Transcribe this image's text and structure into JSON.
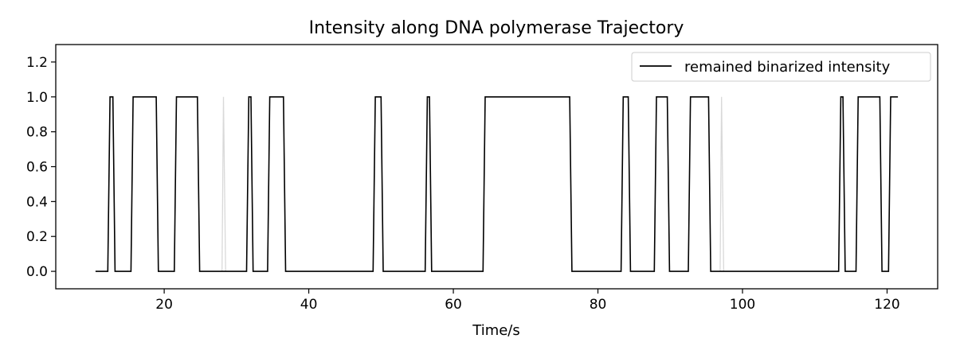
{
  "chart_data": {
    "type": "line",
    "title": "Intensity along DNA polymerase Trajectory",
    "xlabel": "Time/s",
    "ylabel": "",
    "xlim": [
      5,
      127
    ],
    "ylim": [
      -0.1,
      1.3
    ],
    "xticks": [
      20,
      40,
      60,
      80,
      100,
      120
    ],
    "xtick_labels": [
      "20",
      "40",
      "60",
      "80",
      "100",
      "120"
    ],
    "yticks": [
      0.0,
      0.2,
      0.4,
      0.6,
      0.8,
      1.0,
      1.2
    ],
    "ytick_labels": [
      "0.0",
      "0.2",
      "0.4",
      "0.6",
      "0.8",
      "1.0",
      "1.2"
    ],
    "grid": false,
    "legend": {
      "position": "top-right",
      "entries": [
        "remained binarized intensity"
      ]
    },
    "series": [
      {
        "name": "remained binarized intensity",
        "color": "#000000",
        "x": [
          10.5,
          12.2,
          12.5,
          12.9,
          13.2,
          15.4,
          15.7,
          18.9,
          19.2,
          21.4,
          21.7,
          24.6,
          24.9,
          31.4,
          31.7,
          32.0,
          32.3,
          34.3,
          34.6,
          36.5,
          36.8,
          48.9,
          49.2,
          50.0,
          50.3,
          56.1,
          56.4,
          56.7,
          57.0,
          64.1,
          64.4,
          76.1,
          76.4,
          83.2,
          83.5,
          84.2,
          84.5,
          87.8,
          88.1,
          89.6,
          89.9,
          92.5,
          92.8,
          95.3,
          95.6,
          113.3,
          113.6,
          113.9,
          114.2,
          115.7,
          116.0,
          119.0,
          119.3,
          120.2,
          120.5,
          121.5
        ],
        "y": [
          0,
          0,
          1,
          1,
          0,
          0,
          1,
          1,
          0,
          0,
          1,
          1,
          0,
          0,
          1,
          1,
          0,
          0,
          1,
          1,
          0,
          0,
          1,
          1,
          0,
          0,
          1,
          1,
          0,
          0,
          1,
          1,
          0,
          0,
          1,
          1,
          0,
          0,
          1,
          1,
          0,
          0,
          1,
          1,
          0,
          0,
          1,
          1,
          0,
          0,
          1,
          1,
          0,
          0,
          1,
          1
        ]
      },
      {
        "name": "",
        "color": "#d9d9d9",
        "segments": [
          {
            "x": [
              28.0,
              28.2,
              28.5
            ],
            "y": [
              0,
              1,
              0
            ]
          },
          {
            "x": [
              96.9,
              97.1,
              97.4
            ],
            "y": [
              0,
              1,
              0
            ]
          }
        ]
      }
    ]
  }
}
